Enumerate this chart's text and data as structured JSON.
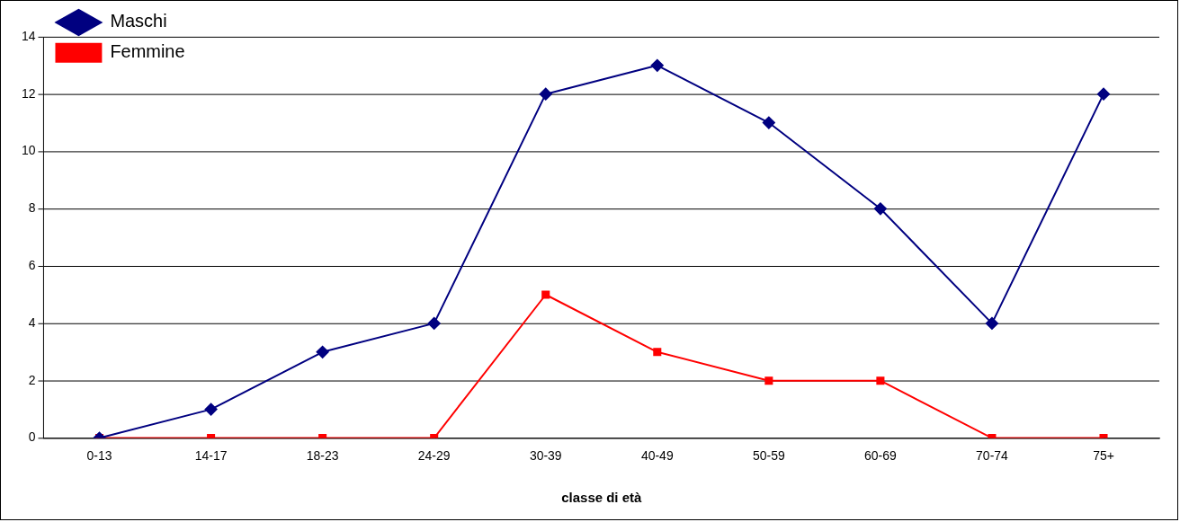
{
  "chart_data": {
    "type": "line",
    "xlabel": "classe di età",
    "categories": [
      "0-13",
      "14-17",
      "18-23",
      "24-29",
      "30-39",
      "40-49",
      "50-59",
      "60-69",
      "70-74",
      "75+"
    ],
    "series": [
      {
        "name": "Maschi",
        "color": "#000080",
        "marker": "diamond",
        "values": [
          0,
          1,
          3,
          4,
          12,
          13,
          11,
          8,
          4,
          12
        ]
      },
      {
        "name": "Femmine",
        "color": "#ff0000",
        "marker": "square",
        "values": [
          0,
          0,
          0,
          0,
          5,
          3,
          2,
          2,
          0,
          0
        ]
      }
    ],
    "ylim": [
      0,
      14
    ],
    "yticks": [
      0,
      2,
      4,
      6,
      8,
      10,
      12,
      14
    ],
    "grid": "y",
    "legend": "top left",
    "line_style": "solid"
  }
}
